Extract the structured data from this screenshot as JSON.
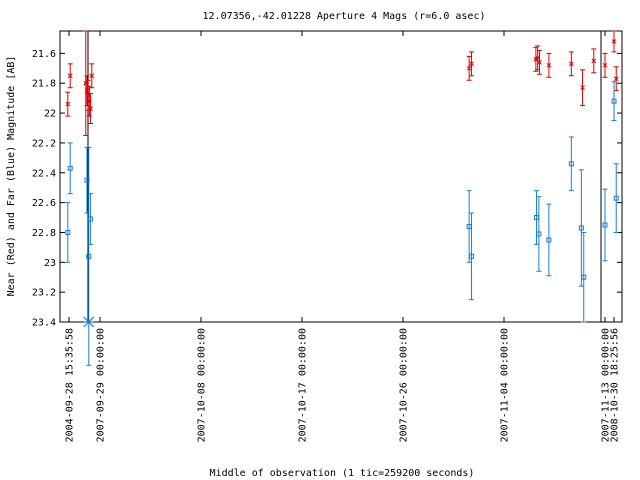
{
  "chart_data": {
    "type": "scatter",
    "title": "12.07356,-42.01228   Aperture 4 Mags (r=6.0 asec)",
    "xlabel": "Middle of observation (1 tic=259200 seconds)",
    "ylabel": "Near (Red) and Far (Blue) Magnitude [AB]",
    "y_reversed": true,
    "ylim": [
      23.4,
      21.45
    ],
    "y_ticks": [
      "21.6",
      "21.8",
      "22",
      "22.2",
      "22.4",
      "22.6",
      "22.8",
      "23",
      "23.2",
      "23.4"
    ],
    "x_ticks": [
      "2004-09-28 15:35:58",
      "2007-09-29 00:00:00",
      "2007-10-08 00:00:00",
      "2007-10-17 00:00:00",
      "2007-10-26 00:00:00",
      "2007-11-04 00:00:00",
      "2007-11-13 00:00:00",
      "2008-10-30 18:25:56"
    ],
    "grid": false,
    "series": [
      {
        "color": "#dd0000",
        "marker": "x",
        "points": [
          {
            "x": "2004-09-28 15:35:58",
            "y": 21.94,
            "err": 0.08
          },
          {
            "x": "2004-09-28 15:35:58",
            "y": 21.75,
            "err": 0.08
          },
          {
            "x": "2007-09-28",
            "y": 21.8,
            "err": 0.35
          },
          {
            "x": "2007-09-28",
            "y": 21.85,
            "err": 0.1
          },
          {
            "x": "2007-09-28",
            "y": 21.88,
            "err": 0.1
          },
          {
            "x": "2007-09-28",
            "y": 21.92,
            "err": 0.1
          },
          {
            "x": "2007-09-28",
            "y": 21.97,
            "err": 0.1
          },
          {
            "x": "2007-09-28",
            "y": 21.75,
            "err": 0.08
          },
          {
            "x": "2007-11-01",
            "y": 21.7,
            "err": 0.08
          },
          {
            "x": "2007-11-01",
            "y": 21.67,
            "err": 0.08
          },
          {
            "x": "2007-11-07",
            "y": 21.64,
            "err": 0.08
          },
          {
            "x": "2007-11-07",
            "y": 21.63,
            "err": 0.08
          },
          {
            "x": "2007-11-07",
            "y": 21.66,
            "err": 0.08
          },
          {
            "x": "2007-11-08",
            "y": 21.68,
            "err": 0.08
          },
          {
            "x": "2007-11-10",
            "y": 21.67,
            "err": 0.08
          },
          {
            "x": "2007-11-11",
            "y": 21.83,
            "err": 0.12
          },
          {
            "x": "2007-11-12",
            "y": 21.65,
            "err": 0.08
          },
          {
            "x": "2007-11-13",
            "y": 21.68,
            "err": 0.08
          },
          {
            "x": "2007-11-14",
            "y": 21.77,
            "err": 0.08
          },
          {
            "x": "2008-10-30 18:25:56",
            "y": 21.52,
            "err": 0.07
          }
        ]
      },
      {
        "color": "#1a7fcf",
        "marker": "square",
        "points": [
          {
            "x": "2004-09-28 15:35:58",
            "y": 22.8,
            "err": 0.2
          },
          {
            "x": "2004-09-28 15:35:58",
            "y": 22.37,
            "err": 0.17
          },
          {
            "x": "2007-09-28",
            "y": 22.45,
            "err": 0.22
          },
          {
            "x": "2007-09-28",
            "y": 22.96,
            "err": 0.73
          },
          {
            "x": "2007-09-28",
            "y": 22.71,
            "err": 0.17
          },
          {
            "x": "2007-11-01",
            "y": 22.76,
            "err": 0.24
          },
          {
            "x": "2007-11-01",
            "y": 22.96,
            "err": 0.29
          },
          {
            "x": "2007-11-07",
            "y": 22.7,
            "err": 0.18
          },
          {
            "x": "2007-11-07",
            "y": 22.81,
            "err": 0.25
          },
          {
            "x": "2007-11-08",
            "y": 22.85,
            "err": 0.24
          },
          {
            "x": "2007-11-10",
            "y": 22.34,
            "err": 0.18
          },
          {
            "x": "2007-11-11",
            "y": 22.77,
            "err": 0.39
          },
          {
            "x": "2007-11-11",
            "y": 23.1,
            "err": 0.3
          },
          {
            "x": "2007-11-13",
            "y": 22.75,
            "err": 0.24
          },
          {
            "x": "2007-11-14",
            "y": 22.57,
            "err": 0.23
          },
          {
            "x": "2008-10-30 18:25:56",
            "y": 21.92,
            "err": 0.13
          }
        ]
      }
    ],
    "markers": [
      {
        "x": "2007-09-28",
        "y": 23.4,
        "shape": "asterisk",
        "color": "#1a7fcf"
      }
    ]
  }
}
